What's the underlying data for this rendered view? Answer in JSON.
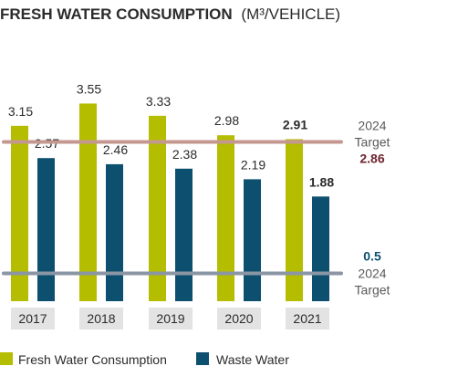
{
  "chart_data": {
    "type": "bar",
    "title": "FRESH WATER CONSUMPTION",
    "title_unit": "(M³/VEHICLE)",
    "categories": [
      "2017",
      "2018",
      "2019",
      "2020",
      "2021"
    ],
    "series": [
      {
        "name": "Fresh Water Consumption",
        "color": "#b5bd00",
        "values": [
          3.15,
          3.55,
          3.33,
          2.98,
          2.91
        ],
        "labels": [
          "3.15",
          "3.55",
          "3.33",
          "2.98",
          "2.91"
        ]
      },
      {
        "name": "Waste Water",
        "color": "#0d4f6e",
        "values": [
          2.57,
          2.46,
          2.38,
          2.19,
          1.88
        ],
        "labels": [
          "2.57",
          "2.46",
          "2.38",
          "2.19",
          "1.88"
        ]
      }
    ],
    "ylim": [
      0,
      3.77
    ],
    "targets": [
      {
        "value": 2.86,
        "line1": "2024",
        "line2": "Target",
        "value_label": "2.86",
        "line_color": "#c49890",
        "value_color": "#6e2430"
      },
      {
        "value": 0.5,
        "line1": "2024",
        "line2": "Target",
        "value_label": "0.5",
        "line_color": "#8a96a4",
        "value_color": "#0d4f6e"
      }
    ],
    "label_color": "#2b2b2b",
    "axis_label_color": "#595959",
    "category_box_color": "#e3e3e3",
    "grid": false,
    "legend_position": "bottom"
  }
}
